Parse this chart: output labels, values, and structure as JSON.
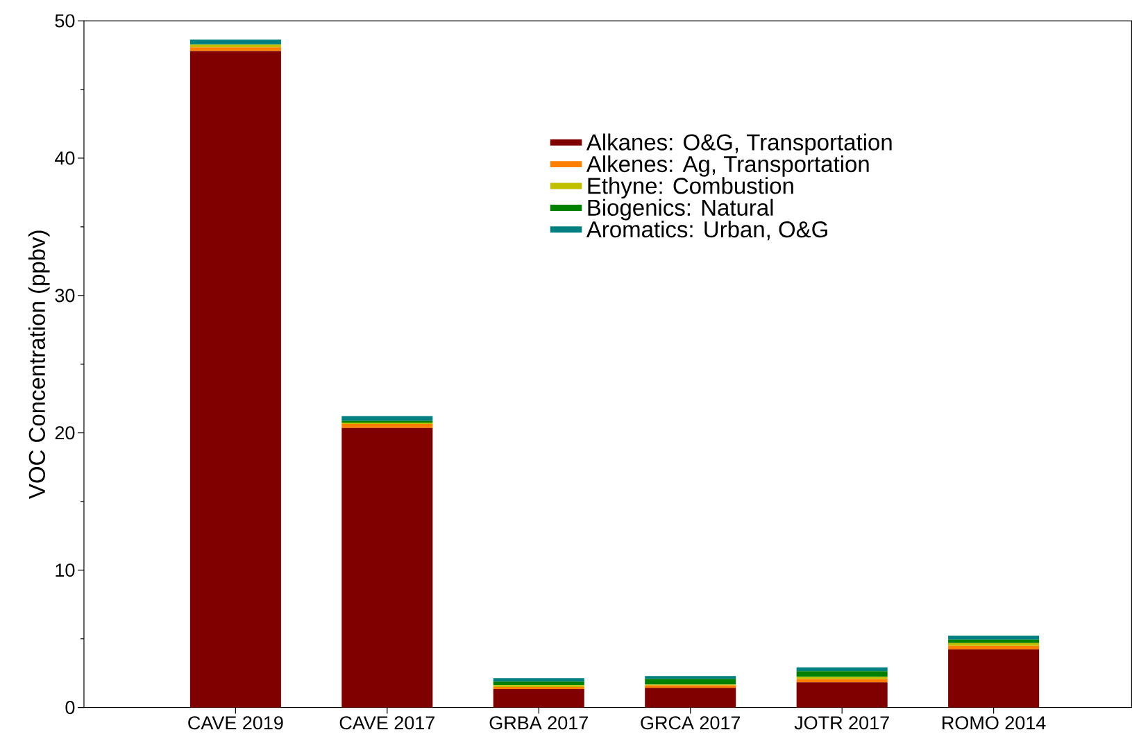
{
  "chart_data": {
    "type": "bar",
    "stacked": true,
    "ylabel": "VOC Concentration (ppbv)",
    "categories": [
      "CAVE 2019",
      "CAVE 2017",
      "GRBA 2017",
      "GRCA 2017",
      "JOTR 2017",
      "ROMO 2014"
    ],
    "series": [
      {
        "name": "Alkanes: O&G, Transportation",
        "color": "#800000",
        "values": [
          47.8,
          20.35,
          1.34,
          1.44,
          1.84,
          4.24
        ]
      },
      {
        "name": "Alkenes: Ag, Transportation",
        "color": "#ff8000",
        "values": [
          0.27,
          0.3,
          0.16,
          0.17,
          0.23,
          0.25
        ]
      },
      {
        "name": "Ethyne: Combustion",
        "color": "#c0c000",
        "values": [
          0.2,
          0.1,
          0.14,
          0.06,
          0.16,
          0.2
        ]
      },
      {
        "name": "Biogenics: Natural",
        "color": "#008000",
        "values": [
          null,
          0.12,
          0.25,
          0.41,
          0.41,
          0.25
        ]
      },
      {
        "name": "Aromatics: Urban, O&G",
        "color": "#008080",
        "values": [
          0.37,
          0.34,
          0.25,
          0.21,
          0.29,
          0.3
        ]
      }
    ],
    "ylim": [
      0,
      50
    ],
    "yticks": [
      0,
      10,
      20,
      30,
      40,
      50
    ],
    "legend": "top right",
    "grid": false
  }
}
